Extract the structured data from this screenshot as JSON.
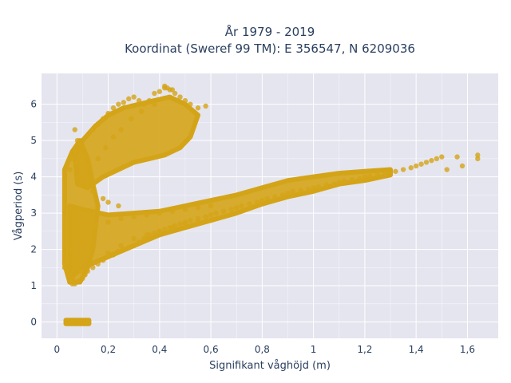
{
  "chart_data": {
    "type": "scatter",
    "title": "År 1979 - 2019",
    "subtitle": "Koordinat (Sweref 99 TM): E 356547, N 6209036",
    "xlabel": "Signifikant våghöjd (m)",
    "ylabel": "Vågperiod (s)",
    "xlim": [
      -0.06,
      1.72
    ],
    "ylim": [
      -0.45,
      6.85
    ],
    "x_ticks": [
      0,
      0.2,
      0.4,
      0.6,
      0.8,
      1,
      1.2,
      1.4,
      1.6
    ],
    "x_tick_labels": [
      "0",
      "0,2",
      "0,4",
      "0,6",
      "0,8",
      "1",
      "1,2",
      "1,4",
      "1,6"
    ],
    "y_ticks": [
      0,
      1,
      2,
      3,
      4,
      5,
      6
    ],
    "y_tick_labels": [
      "0",
      "1",
      "2",
      "3",
      "4",
      "5",
      "6"
    ],
    "grid": true,
    "marker_color": "#D4A418",
    "plot_bgcolor": "#E5E5F0",
    "series": [
      {
        "x": [
          0.04,
          0.05,
          0.06,
          0.07,
          0.08,
          0.09,
          0.1,
          0.11,
          0.12,
          0.03,
          0.03,
          0.04,
          0.05,
          0.06,
          0.05,
          0.06,
          0.07,
          0.08,
          0.09,
          0.1,
          0.11,
          0.12,
          0.14,
          0.16,
          0.18,
          0.2,
          0.22,
          0.24,
          0.26,
          0.28,
          0.3,
          0.32,
          0.34,
          0.36,
          0.38,
          0.4,
          0.42,
          0.44,
          0.46,
          0.48,
          0.5,
          0.52,
          0.55,
          0.58,
          0.6,
          0.62,
          0.65,
          0.68,
          0.7,
          0.72,
          0.75,
          0.78,
          0.8,
          0.82,
          0.85,
          0.88,
          0.9,
          0.92,
          0.95,
          0.98,
          1.0,
          1.02,
          1.05,
          1.08,
          1.1,
          1.12,
          1.15,
          1.18,
          1.2,
          1.22,
          1.25,
          1.28,
          1.3,
          1.32,
          1.35,
          1.38,
          1.4,
          1.42,
          1.44,
          1.46,
          1.48,
          1.5,
          1.52,
          1.56,
          1.58,
          1.64,
          1.64,
          0.14,
          0.16,
          0.18,
          0.2,
          0.22,
          0.24,
          0.26,
          0.28,
          0.3,
          0.32,
          0.34,
          0.36,
          0.38,
          0.4,
          0.42,
          0.44,
          0.46,
          0.48,
          0.5,
          0.52,
          0.55,
          0.58,
          0.42,
          0.43,
          0.45,
          0.38,
          0.33,
          0.29,
          0.25,
          0.22,
          0.19,
          0.16,
          0.12,
          0.09,
          0.08,
          0.07,
          0.07,
          0.06,
          0.08,
          0.1,
          0.05,
          0.1,
          0.12,
          0.14,
          0.18,
          0.2,
          0.24,
          0.12,
          0.15,
          0.2,
          0.25,
          0.3,
          0.35,
          0.4,
          0.45,
          0.5,
          0.55,
          0.6,
          0.06,
          0.07,
          0.08,
          0.09,
          0.1,
          0.06,
          0.07,
          0.08,
          0.09,
          0.15,
          0.2,
          0.25,
          0.3,
          0.35,
          0.4,
          0.45,
          0.5,
          0.55,
          0.6
        ],
        "y": [
          0.0,
          0.0,
          0.0,
          0.0,
          0.0,
          0.0,
          0.0,
          0.0,
          0.0,
          1.6,
          1.5,
          1.4,
          1.3,
          1.2,
          1.1,
          1.05,
          1.05,
          1.1,
          1.15,
          1.2,
          1.3,
          1.4,
          1.5,
          1.6,
          1.7,
          1.8,
          1.85,
          1.95,
          2.0,
          2.05,
          2.1,
          2.2,
          2.3,
          2.4,
          2.45,
          2.5,
          2.55,
          2.6,
          2.65,
          2.7,
          2.75,
          2.8,
          2.85,
          2.9,
          2.95,
          3.0,
          3.05,
          3.1,
          3.15,
          3.2,
          3.25,
          3.3,
          3.35,
          3.4,
          3.45,
          3.5,
          3.55,
          3.6,
          3.62,
          3.65,
          3.7,
          3.72,
          3.78,
          3.8,
          3.85,
          3.88,
          3.92,
          3.95,
          4.0,
          4.02,
          4.05,
          4.1,
          4.12,
          4.15,
          4.2,
          4.25,
          4.3,
          4.35,
          4.4,
          4.45,
          4.5,
          4.55,
          4.2,
          4.55,
          4.3,
          4.6,
          4.5,
          5.3,
          5.45,
          5.6,
          5.75,
          5.9,
          6.0,
          6.05,
          6.15,
          6.2,
          6.1,
          6.0,
          6.1,
          6.3,
          6.35,
          6.45,
          6.4,
          6.3,
          6.2,
          6.1,
          6.0,
          5.9,
          5.95,
          6.5,
          6.45,
          6.4,
          6.0,
          5.8,
          5.6,
          5.3,
          5.1,
          4.8,
          4.5,
          4.3,
          4.9,
          5.0,
          5.3,
          4.7,
          4.5,
          4.4,
          4.6,
          4.2,
          4.0,
          3.8,
          3.6,
          3.4,
          3.3,
          3.2,
          2.8,
          2.7,
          2.75,
          2.85,
          2.9,
          2.95,
          3.0,
          3.05,
          3.1,
          3.15,
          3.2,
          3.0,
          2.8,
          2.6,
          2.4,
          2.2,
          2.0,
          1.8,
          1.6,
          1.4,
          1.65,
          1.9,
          2.1,
          2.3,
          2.4,
          2.5,
          2.6,
          2.7,
          2.75,
          2.8
        ]
      }
    ]
  }
}
